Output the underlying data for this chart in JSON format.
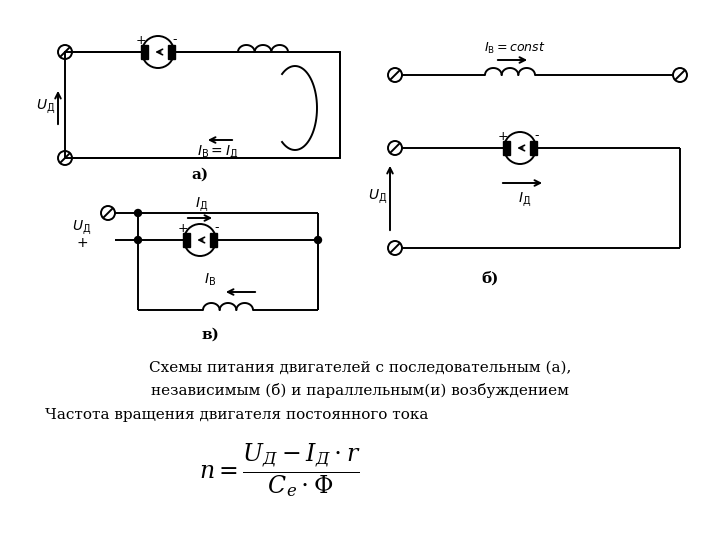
{
  "bg_color": "#ffffff",
  "line_color": "#000000",
  "title_text1": "Схемы питания двигателей с последовательным (а),",
  "title_text2": "независимым (б) и параллельным(и) возбуждением",
  "subtitle": "Частота вращения двигателя постоянного тока",
  "label_a": "а)",
  "label_b": "б)",
  "label_v": "в)",
  "lw": 1.4
}
